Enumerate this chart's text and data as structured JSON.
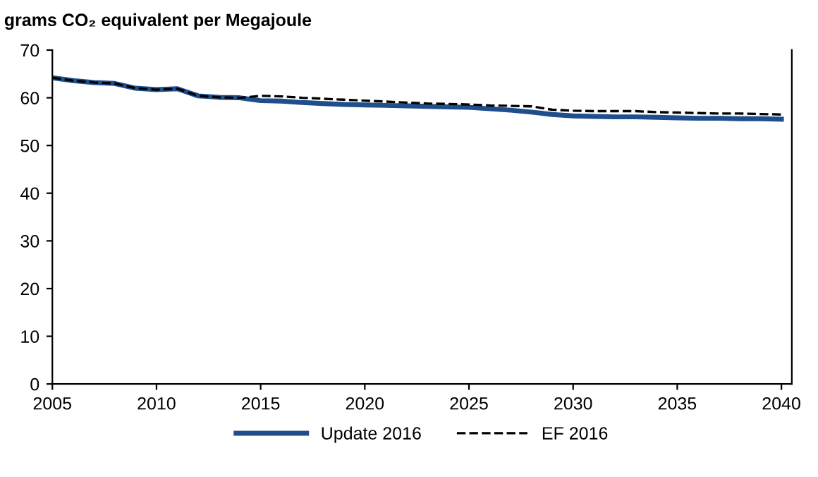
{
  "chart_data": {
    "type": "line",
    "ylabel": "grams CO₂ equivalent per Megajoule",
    "x": [
      2005,
      2006,
      2007,
      2008,
      2009,
      2010,
      2011,
      2012,
      2013,
      2014,
      2015,
      2016,
      2017,
      2018,
      2019,
      2020,
      2021,
      2022,
      2023,
      2024,
      2025,
      2026,
      2027,
      2028,
      2029,
      2030,
      2031,
      2032,
      2033,
      2034,
      2035,
      2036,
      2037,
      2038,
      2039,
      2040
    ],
    "series": [
      {
        "name": "Update 2016",
        "color": "#1f4e8c",
        "line_style": "solid",
        "values": [
          64.2,
          63.6,
          63.2,
          63.0,
          62.0,
          61.7,
          61.9,
          60.4,
          60.1,
          60.0,
          59.4,
          59.3,
          59.0,
          58.8,
          58.6,
          58.5,
          58.4,
          58.3,
          58.2,
          58.1,
          58.0,
          57.7,
          57.4,
          57.0,
          56.5,
          56.2,
          56.1,
          56.0,
          56.0,
          55.9,
          55.8,
          55.7,
          55.7,
          55.6,
          55.6,
          55.5
        ]
      },
      {
        "name": "EF 2016",
        "color": "#000000",
        "line_style": "dashed",
        "values": [
          64.2,
          63.6,
          63.2,
          63.0,
          62.0,
          61.7,
          61.9,
          60.4,
          60.1,
          60.0,
          60.4,
          60.3,
          60.0,
          59.8,
          59.6,
          59.4,
          59.2,
          59.0,
          58.8,
          58.7,
          58.6,
          58.4,
          58.3,
          58.2,
          57.5,
          57.3,
          57.2,
          57.2,
          57.2,
          57.0,
          56.9,
          56.8,
          56.7,
          56.7,
          56.6,
          56.5
        ]
      }
    ],
    "xlim": [
      2005,
      2040.5
    ],
    "xticks": [
      2005,
      2010,
      2015,
      2020,
      2025,
      2030,
      2035,
      2040
    ],
    "ylim": [
      0,
      70
    ],
    "yticks": [
      0,
      10,
      20,
      30,
      40,
      50,
      60,
      70
    ],
    "grid": false,
    "legend": "bottom",
    "marker": "none"
  }
}
